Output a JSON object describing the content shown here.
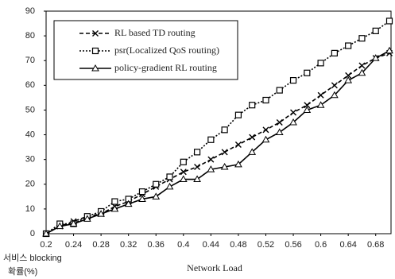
{
  "chart_data": {
    "type": "line",
    "x_label": "Network Load",
    "y_label": [
      "서비스 blocking",
      "확률(%)"
    ],
    "x": [
      0.2,
      0.22,
      0.24,
      0.26,
      0.28,
      0.3,
      0.32,
      0.34,
      0.36,
      0.38,
      0.4,
      0.42,
      0.44,
      0.46,
      0.48,
      0.5,
      0.52,
      0.54,
      0.56,
      0.58,
      0.6,
      0.62,
      0.64,
      0.66,
      0.68,
      0.7
    ],
    "series": [
      {
        "name": "RL based TD routing",
        "color": "#000000",
        "marker": "x",
        "line_style": "dash",
        "values": [
          0,
          3,
          5,
          7,
          8,
          11,
          13,
          16,
          19,
          22,
          25,
          27,
          30,
          33,
          36,
          39,
          42,
          45,
          49,
          52,
          56,
          60,
          64,
          68,
          71,
          73
        ]
      },
      {
        "name": "psr(Localized QoS routing)",
        "color": "#000000",
        "marker": "square",
        "line_style": "dot",
        "values": [
          0,
          4,
          4,
          7,
          9,
          13,
          14,
          17,
          20,
          23,
          29,
          33,
          38,
          42,
          48,
          52,
          54,
          58,
          62,
          65,
          69,
          73,
          76,
          79,
          82,
          86
        ]
      },
      {
        "name": "policy-gradient RL routing",
        "color": "#000000",
        "marker": "triangle",
        "line_style": "solid",
        "values": [
          0,
          3,
          4,
          6,
          8,
          10,
          12,
          14,
          15,
          19,
          22,
          22,
          26,
          27,
          28,
          33,
          38,
          41,
          45,
          50,
          52,
          56,
          62,
          65,
          71,
          74
        ]
      }
    ],
    "xlim": [
      0.2,
      0.7
    ],
    "xticks": [
      0.2,
      0.24,
      0.28,
      0.32,
      0.36,
      0.4,
      0.44,
      0.48,
      0.52,
      0.56,
      0.6,
      0.64,
      0.68
    ],
    "ylim": [
      0,
      90
    ],
    "yticks": [
      0,
      10,
      20,
      30,
      40,
      50,
      60,
      70,
      80,
      90
    ],
    "grid": false,
    "legend": "upper-left"
  }
}
